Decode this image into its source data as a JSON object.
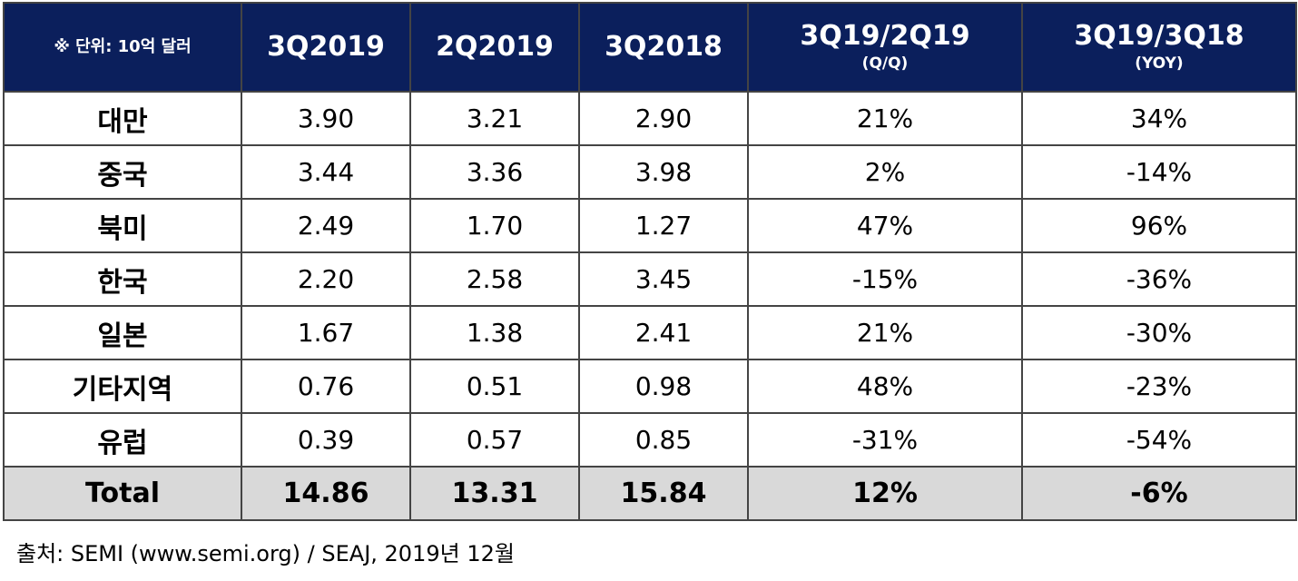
{
  "chart_data": {
    "type": "table",
    "columns": [
      {
        "main": "※ 단위: 10억 달러",
        "sub": ""
      },
      {
        "main": "3Q2019",
        "sub": ""
      },
      {
        "main": "2Q2019",
        "sub": ""
      },
      {
        "main": "3Q2018",
        "sub": ""
      },
      {
        "main": "3Q19/2Q19",
        "sub": "(Q/Q)"
      },
      {
        "main": "3Q19/3Q18",
        "sub": "(YOY)"
      }
    ],
    "rows": [
      [
        "대만",
        "3.90",
        "3.21",
        "2.90",
        "21%",
        "34%"
      ],
      [
        "중국",
        "3.44",
        "3.36",
        "3.98",
        "2%",
        "-14%"
      ],
      [
        "북미",
        "2.49",
        "1.70",
        "1.27",
        "47%",
        "96%"
      ],
      [
        "한국",
        "2.20",
        "2.58",
        "3.45",
        "-15%",
        "-36%"
      ],
      [
        "일본",
        "1.67",
        "1.38",
        "2.41",
        "21%",
        "-30%"
      ],
      [
        "기타지역",
        "0.76",
        "0.51",
        "0.98",
        "48%",
        "-23%"
      ],
      [
        "유럽",
        "0.39",
        "0.57",
        "0.85",
        "-31%",
        "-54%"
      ]
    ],
    "total": [
      "Total",
      "14.86",
      "13.31",
      "15.84",
      "12%",
      "-6%"
    ]
  },
  "source": "출처: SEMI (www.semi.org) / SEAJ, 2019년 12월",
  "colors": {
    "header_bg": "#0b1f5c",
    "header_text": "#ffffff",
    "total_bg": "#d9d9d9",
    "border": "#444444"
  }
}
